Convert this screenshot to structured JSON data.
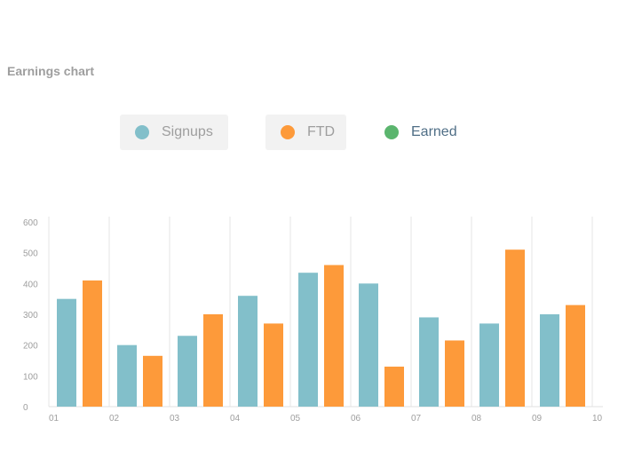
{
  "page": {
    "title": "Earnings chart"
  },
  "legend": {
    "items": [
      {
        "label": "Signups",
        "color": "#82bfca",
        "active": true
      },
      {
        "label": "FTD",
        "color": "#fd9a3a",
        "active": true
      },
      {
        "label": "Earned",
        "color": "#5bb56e",
        "active": false
      }
    ]
  },
  "chart_data": {
    "type": "bar",
    "categories": [
      "01",
      "02",
      "03",
      "04",
      "05",
      "06",
      "07",
      "08",
      "09"
    ],
    "x_tick_labels": [
      "01",
      "02",
      "03",
      "04",
      "05",
      "06",
      "07",
      "08",
      "09",
      "10"
    ],
    "y_ticks": [
      0,
      100,
      200,
      300,
      400,
      500,
      600
    ],
    "ylim": [
      0,
      600
    ],
    "grid": "vertical",
    "series": [
      {
        "name": "Signups",
        "color": "#82bfca",
        "values": [
          350,
          200,
          230,
          360,
          435,
          400,
          290,
          270,
          300
        ]
      },
      {
        "name": "FTD",
        "color": "#fd9a3a",
        "values": [
          410,
          165,
          300,
          270,
          460,
          130,
          215,
          510,
          330
        ]
      }
    ]
  }
}
